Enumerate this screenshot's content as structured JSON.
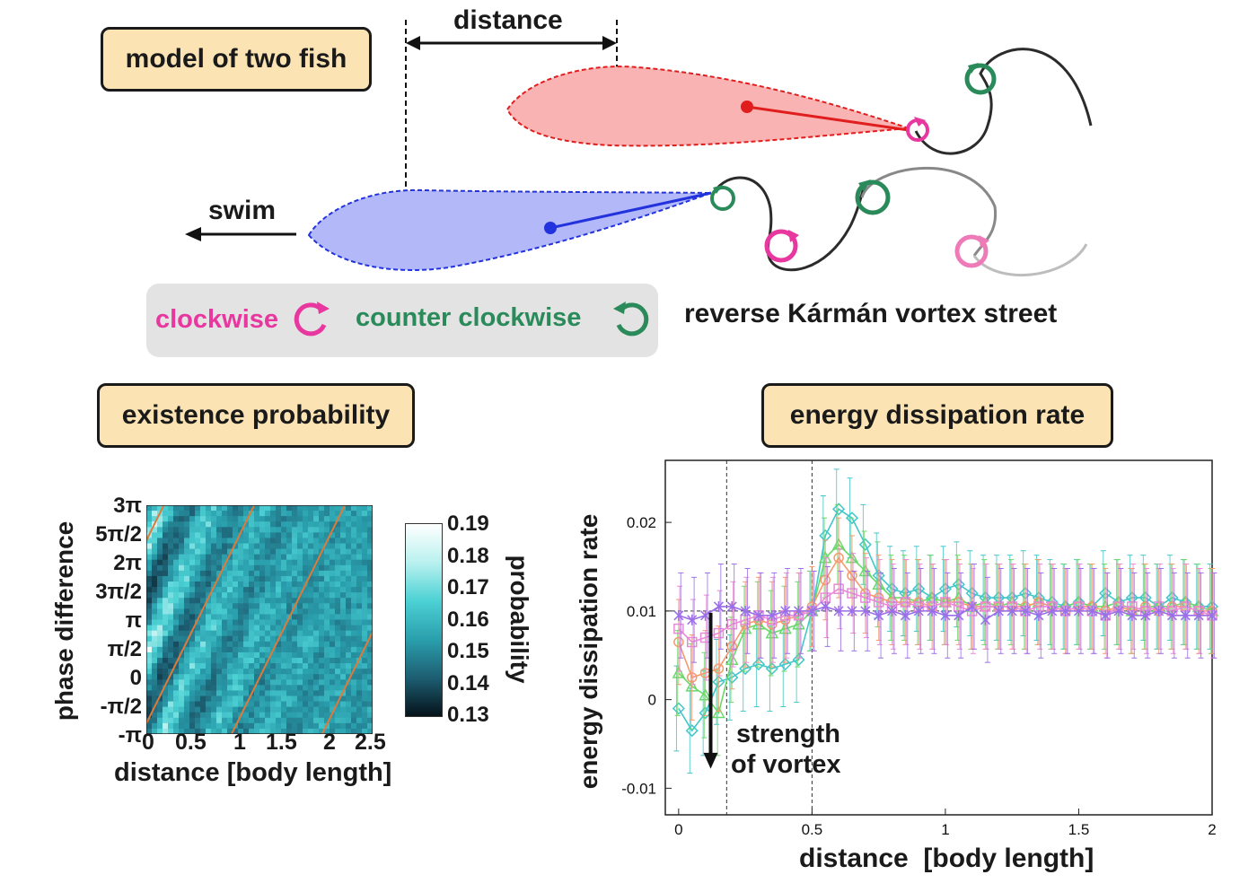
{
  "panels": {
    "model": "model of two fish",
    "existence": "existence probability",
    "energy": "energy dissipation rate"
  },
  "diagram": {
    "distance_label": "distance",
    "swim_label": "swim",
    "street_label": "reverse Kármán vortex street",
    "legend": {
      "clockwise": "clockwise",
      "counter_clockwise": "counter clockwise",
      "clockwise_color": "#e8379e",
      "counter_color": "#2a8a5a"
    },
    "colors": {
      "fish_top_fill": "#f9b3b3",
      "fish_top_edge": "#e01e1e",
      "fish_bottom_fill": "#b3b8f9",
      "fish_bottom_edge": "#2233dd"
    }
  },
  "heatmap": {
    "ylabel": "phase difference",
    "xlabel": "distance [body length]",
    "y_ticks": [
      "3π",
      "5π/2",
      "2π",
      "3π/2",
      "π",
      "π/2",
      "0",
      "-π/2",
      "-π"
    ],
    "x_ticks": [
      "0",
      "0.5",
      "1",
      "1.5",
      "2",
      "2.5"
    ],
    "colorbar_label": "probability",
    "colorbar_ticks": [
      "0.19",
      "0.18",
      "0.17",
      "0.16",
      "0.15",
      "0.14",
      "0.13"
    ]
  },
  "chart_data": {
    "type": "line",
    "ylabel": "energy dissipation rate",
    "xlabel": "distance  [body length]",
    "x_ticks": [
      "0",
      "0.5",
      "1",
      "1.5",
      "2"
    ],
    "y_ticks": [
      "0.02",
      "0.01",
      "0",
      "-0.01"
    ],
    "xlim": [
      -0.05,
      2.0
    ],
    "ylim": [
      -0.013,
      0.027
    ],
    "reference_lines": {
      "x": [
        0.18,
        0.5
      ],
      "y": 0.01
    },
    "annotation": [
      "strength",
      "of vortex"
    ],
    "x": [
      0,
      0.05,
      0.1,
      0.15,
      0.2,
      0.25,
      0.3,
      0.35,
      0.4,
      0.45,
      0.5,
      0.55,
      0.6,
      0.65,
      0.7,
      0.75,
      0.8,
      0.85,
      0.9,
      0.95,
      1.0,
      1.05,
      1.1,
      1.15,
      1.2,
      1.25,
      1.3,
      1.35,
      1.4,
      1.45,
      1.5,
      1.55,
      1.6,
      1.65,
      1.7,
      1.75,
      1.8,
      1.85,
      1.9,
      1.95,
      2.0
    ],
    "series": [
      {
        "color": "#43c6c9",
        "marker": "diamond",
        "values": [
          -0.001,
          -0.0035,
          -0.0015,
          0.002,
          0.0025,
          0.0035,
          0.004,
          0.0035,
          0.004,
          0.0045,
          0.01,
          0.0185,
          0.0215,
          0.0205,
          0.0175,
          0.014,
          0.0125,
          0.012,
          0.0125,
          0.0115,
          0.0125,
          0.013,
          0.012,
          0.0115,
          0.0115,
          0.0115,
          0.012,
          0.0115,
          0.011,
          0.0105,
          0.011,
          0.0105,
          0.012,
          0.011,
          0.0115,
          0.0115,
          0.0105,
          0.0115,
          0.011,
          0.0105,
          0.0105
        ]
      },
      {
        "color": "#6ad96a",
        "marker": "triangle",
        "values": [
          0.003,
          0.0015,
          0.0005,
          -0.0015,
          0.0045,
          0.008,
          0.0085,
          0.0075,
          0.008,
          0.0085,
          0.01,
          0.016,
          0.0175,
          0.016,
          0.0145,
          0.013,
          0.0115,
          0.0115,
          0.011,
          0.0115,
          0.011,
          0.0115,
          0.0105,
          0.011,
          0.0105,
          0.011,
          0.0105,
          0.011,
          0.0105,
          0.0105,
          0.011,
          0.0105,
          0.0105,
          0.011,
          0.01,
          0.0105,
          0.0105,
          0.0105,
          0.011,
          0.0105,
          0.01
        ]
      },
      {
        "color": "#f59a6e",
        "marker": "circle",
        "values": [
          0.0065,
          0.0025,
          0.003,
          0.0035,
          0.006,
          0.0085,
          0.009,
          0.0085,
          0.009,
          0.0095,
          0.0105,
          0.0135,
          0.016,
          0.014,
          0.012,
          0.0115,
          0.011,
          0.011,
          0.011,
          0.0105,
          0.011,
          0.011,
          0.0105,
          0.0105,
          0.0105,
          0.0105,
          0.0105,
          0.011,
          0.0105,
          0.01,
          0.0105,
          0.0105,
          0.01,
          0.0105,
          0.01,
          0.0105,
          0.01,
          0.0105,
          0.0105,
          0.01,
          0.01
        ]
      },
      {
        "color": "#e98ad8",
        "marker": "square",
        "values": [
          0.008,
          0.0065,
          0.007,
          0.0075,
          0.0085,
          0.009,
          0.0095,
          0.009,
          0.0095,
          0.0095,
          0.01,
          0.0115,
          0.0125,
          0.012,
          0.0115,
          0.011,
          0.0105,
          0.011,
          0.0105,
          0.0105,
          0.011,
          0.0105,
          0.01,
          0.0105,
          0.0105,
          0.0105,
          0.01,
          0.0105,
          0.0105,
          0.01,
          0.0105,
          0.01,
          0.0095,
          0.0105,
          0.0105,
          0.01,
          0.0105,
          0.01,
          0.0105,
          0.01,
          0.0095
        ]
      },
      {
        "color": "#9b6fe8",
        "marker": "x",
        "values": [
          0.0095,
          0.009,
          0.0095,
          0.0105,
          0.0105,
          0.01,
          0.0095,
          0.0095,
          0.01,
          0.01,
          0.01,
          0.0105,
          0.01,
          0.01,
          0.01,
          0.0095,
          0.01,
          0.0095,
          0.01,
          0.01,
          0.0095,
          0.0095,
          0.0105,
          0.009,
          0.01,
          0.01,
          0.01,
          0.0095,
          0.01,
          0.01,
          0.01,
          0.01,
          0.0095,
          0.01,
          0.0095,
          0.0095,
          0.01,
          0.0095,
          0.0095,
          0.0095,
          0.0095
        ]
      }
    ]
  }
}
